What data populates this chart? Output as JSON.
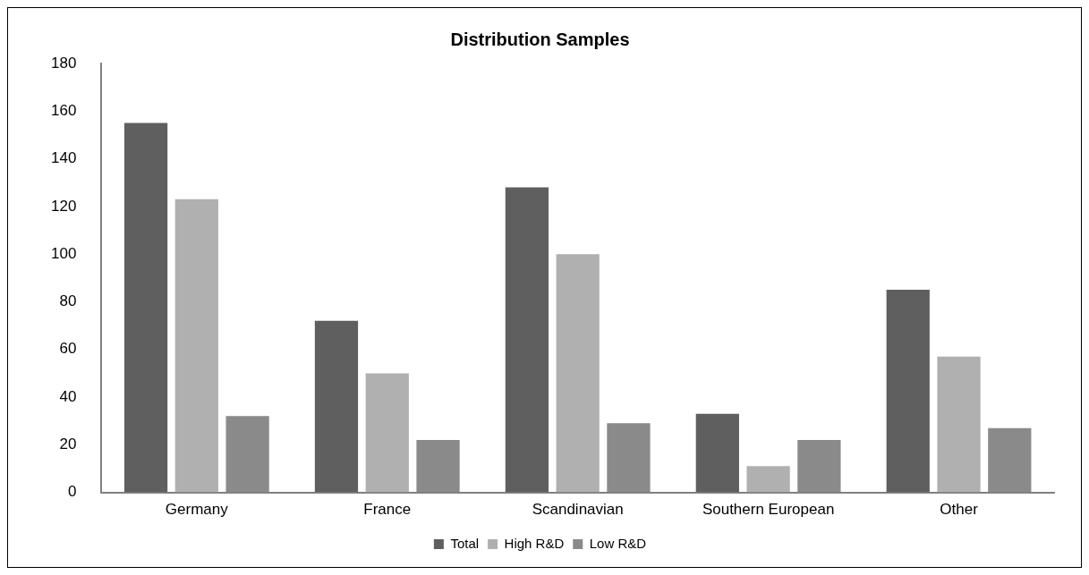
{
  "chart_data": {
    "type": "bar",
    "title": "Distribution Samples",
    "categories": [
      "Germany",
      "France",
      "Scandinavian",
      "Southern European",
      "Other"
    ],
    "series": [
      {
        "name": "Total",
        "color": "#5f5f5f",
        "values": [
          155,
          72,
          128,
          33,
          85
        ]
      },
      {
        "name": "High R&D",
        "color": "#b0b0b0",
        "values": [
          123,
          50,
          100,
          11,
          57
        ]
      },
      {
        "name": "Low R&D",
        "color": "#8a8a8a",
        "values": [
          32,
          22,
          29,
          22,
          27
        ]
      }
    ],
    "ylim": [
      0,
      180
    ],
    "yticks": [
      0,
      20,
      40,
      60,
      80,
      100,
      120,
      140,
      160,
      180
    ],
    "grid": false,
    "legend": "bottom"
  }
}
